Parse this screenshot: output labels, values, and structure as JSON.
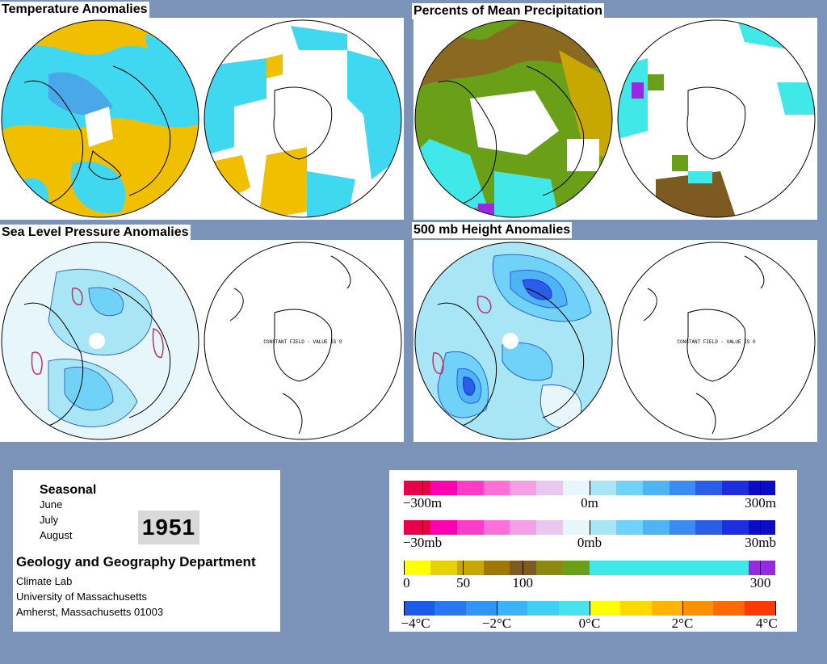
{
  "panels": {
    "temperature": {
      "title": "Temperature Anomalies"
    },
    "precipitation": {
      "title": "Percents of Mean Precipitation"
    },
    "pressure": {
      "title": "Sea Level Pressure Anomalies",
      "south_note": "CONSTANT FIELD - VALUE IS 0"
    },
    "height": {
      "title": "500 mb Height Anomalies",
      "south_note": "CONSTANT FIELD - VALUE IS 0"
    }
  },
  "info": {
    "period_type": "Seasonal",
    "months": [
      "June",
      "July",
      "August"
    ],
    "year": "1951",
    "department": "Geology and Geography Department",
    "address_lines": [
      "Climate Lab",
      "University of Massachusetts",
      "Amherst, Massachusetts 01003"
    ]
  },
  "legends": [
    {
      "name": "height",
      "labels": [
        "−300m",
        "0m",
        "300m"
      ],
      "label_pos": [
        0.05,
        0.5,
        0.96
      ],
      "colors": [
        "#e8004a",
        "#ff00b0",
        "#ff3cc8",
        "#ff70d8",
        "#f59fe6",
        "#e8c8f0",
        "#e6f6fb",
        "#a8e6f6",
        "#70d2f6",
        "#4fb4f4",
        "#3a8cf0",
        "#2a5de8",
        "#1c2ee0",
        "#0c0cc8"
      ]
    },
    {
      "name": "pressure",
      "labels": [
        "−30mb",
        "0mb",
        "30mb"
      ],
      "label_pos": [
        0.05,
        0.5,
        0.96
      ],
      "colors": [
        "#e8004a",
        "#ff00b0",
        "#ff3cc8",
        "#ff70d8",
        "#f59fe6",
        "#e8c8f0",
        "#e6f6fb",
        "#a8e6f6",
        "#70d2f6",
        "#4fb4f4",
        "#3a8cf0",
        "#2a5de8",
        "#1c2ee0",
        "#0c0cc8"
      ]
    },
    {
      "name": "precipitation",
      "labels": [
        "0",
        "50",
        "100",
        "300"
      ],
      "label_pos": [
        0.0,
        0.16,
        0.32,
        0.96
      ],
      "colors": [
        "#ffff00",
        "#e6d200",
        "#c8a800",
        "#a07800",
        "#7c5a20",
        "#8a8a10",
        "#6aa018",
        "#40e8e8",
        "#40e8e8",
        "#40e8e8",
        "#40e8e8",
        "#40e8e8",
        "#40e8e8",
        "#9a28e0"
      ]
    },
    {
      "name": "temperature",
      "labels": [
        "−4°C",
        "−2°C",
        "0°C",
        "2°C",
        "4°C"
      ],
      "label_pos": [
        0.0,
        0.25,
        0.5,
        0.75,
        1.0
      ],
      "colors": [
        "#1c5ae8",
        "#2a78f0",
        "#3294f4",
        "#3ab4f6",
        "#40d0f4",
        "#48e4ee",
        "#ffff00",
        "#ffd800",
        "#ffb400",
        "#ff9000",
        "#ff6a00",
        "#ff3a00"
      ]
    }
  ]
}
